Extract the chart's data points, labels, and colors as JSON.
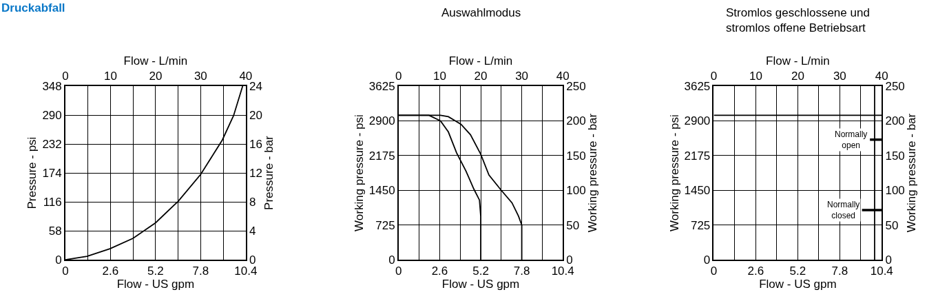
{
  "chart_data": [
    {
      "type": "line",
      "title": "Druckabfall",
      "xlabel": "Flow - US gpm",
      "x2label": "Flow - L/min",
      "ylabel": "Pressure - psi",
      "y2label": "Pressure - bar",
      "xlim": [
        0,
        10.4
      ],
      "xticks": [
        0,
        2.6,
        5.2,
        7.8,
        10.4
      ],
      "x2lim": [
        0,
        40
      ],
      "x2ticks": [
        0,
        {
          "value": 5,
          "label": null
        },
        10,
        {
          "value": 15,
          "label": null
        },
        20,
        {
          "value": 25,
          "label": null
        },
        30,
        {
          "value": 35,
          "label": null
        },
        40
      ],
      "ylim": [
        0,
        348
      ],
      "yticks": [
        0,
        58,
        116,
        174,
        232,
        290,
        348
      ],
      "y2lim": [
        0,
        24
      ],
      "y2ticks": [
        0,
        4,
        8,
        12,
        16,
        20,
        24
      ],
      "grid": true,
      "legend": false,
      "marker": "none",
      "line_style": "solid",
      "series": [
        {
          "color": "#000000",
          "x": [
            0,
            1.25,
            2.57,
            3.9,
            5.2,
            6.5,
            7.8,
            9.05,
            9.7,
            10.22
          ],
          "values": [
            0,
            7,
            22,
            43,
            74,
            117,
            171,
            240,
            289,
            348
          ]
        }
      ]
    },
    {
      "type": "line",
      "title": "Auswahlmodus",
      "xlabel": "Flow - US gpm",
      "x2label": "Flow - L/min",
      "ylabel": "Working pressure - psi",
      "y2label": "Working pressure - bar",
      "xlim": [
        0,
        10.4
      ],
      "xticks": [
        0,
        2.6,
        5.2,
        7.8,
        10.4
      ],
      "x2lim": [
        0,
        40
      ],
      "x2ticks": [
        0,
        {
          "value": 5,
          "label": null
        },
        10,
        {
          "value": 15,
          "label": null
        },
        20,
        {
          "value": 25,
          "label": null
        },
        30,
        {
          "value": 35,
          "label": null
        },
        40
      ],
      "ylim": [
        0,
        3625
      ],
      "yticks": [
        0,
        725,
        1450,
        2175,
        2900,
        3625
      ],
      "y2lim": [
        0,
        250
      ],
      "y2ticks": [
        0,
        50,
        100,
        150,
        200,
        250
      ],
      "grid": true,
      "legend": false,
      "marker": "none",
      "line_style": "solid",
      "series": [
        {
          "color": "#000000",
          "axis": "y2",
          "x": [
            0,
            2.65,
            3.15,
            3.95,
            4.55,
            5.2,
            5.72,
            6.5,
            7.18,
            7.59,
            7.8,
            7.8
          ],
          "values": [
            208,
            208,
            206,
            195,
            180,
            152,
            122,
            100,
            82,
            63,
            50,
            0
          ]
        },
        {
          "color": "#000000",
          "axis": "y2",
          "x": [
            0,
            1.92,
            2.65,
            3.15,
            3.67,
            4.26,
            4.76,
            5.12,
            5.2,
            5.2
          ],
          "values": [
            208,
            208,
            200,
            184,
            154,
            128,
            102,
            86,
            63,
            0
          ]
        }
      ]
    },
    {
      "type": "line",
      "title": "Stromlos geschlossene und\nstromlos offene Betriebsart",
      "xlabel": "Flow - US gpm",
      "x2label": "Flow - L/min",
      "ylabel": "Working pressure - psi",
      "y2label": "Working pressure - bar",
      "xlim": [
        0,
        10.4
      ],
      "xticks": [
        0,
        2.6,
        5.2,
        7.8,
        10.4
      ],
      "x2lim": [
        0,
        40
      ],
      "x2ticks": [
        0,
        {
          "value": 5,
          "label": null
        },
        10,
        {
          "value": 15,
          "label": null
        },
        20,
        {
          "value": 25,
          "label": null
        },
        30,
        {
          "value": 35,
          "label": null
        },
        40
      ],
      "ylim": [
        0,
        3625
      ],
      "yticks": [
        0,
        725,
        1450,
        2175,
        2900,
        3625
      ],
      "y2lim": [
        0,
        250
      ],
      "y2ticks": [
        0,
        50,
        100,
        150,
        200,
        250
      ],
      "grid": true,
      "legend": false,
      "marker": "none",
      "line_style": "solid",
      "series": [
        {
          "color": "#000000",
          "axis": "y2",
          "x": [
            0,
            10.4
          ],
          "values": [
            208,
            208
          ]
        },
        {
          "name": "Normally\nopen",
          "color": "#000000",
          "axis": "y2",
          "x": [
            9.67,
            10.4
          ],
          "values": [
            173,
            173
          ]
        },
        {
          "name": "Normally\nclosed",
          "color": "#000000",
          "axis": "y2",
          "x": [
            9.18,
            10.4
          ],
          "values": [
            71.6,
            71.6
          ]
        }
      ],
      "ref_lines": [
        {
          "axis": "x",
          "value": 9.96,
          "label": null,
          "color": "#000000"
        }
      ]
    }
  ]
}
